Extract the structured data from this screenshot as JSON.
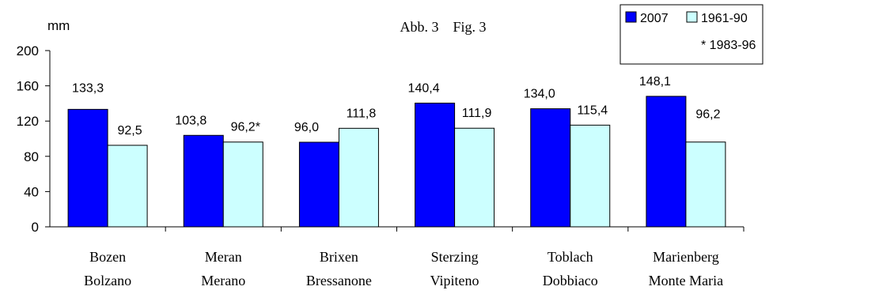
{
  "chart_data": {
    "type": "bar",
    "title": "Abb. 3    Fig. 3",
    "ylabel": "mm",
    "xlabel": "",
    "ylim": [
      0,
      200
    ],
    "yticks": [
      0,
      40,
      80,
      120,
      160,
      200
    ],
    "grid": false,
    "legend_position": "top-right",
    "legend_note": "* 1983-96",
    "categories": [
      {
        "label_de": "Bozen",
        "label_it": "Bolzano"
      },
      {
        "label_de": "Meran",
        "label_it": "Merano"
      },
      {
        "label_de": "Brixen",
        "label_it": "Bressanone"
      },
      {
        "label_de": "Sterzing",
        "label_it": "Vipiteno"
      },
      {
        "label_de": "Toblach",
        "label_it": "Dobbiaco"
      },
      {
        "label_de": "Marienberg",
        "label_it": "Monte Maria"
      }
    ],
    "series": [
      {
        "name": "2007",
        "color": "#0000ff",
        "values": [
          133.3,
          103.8,
          96.0,
          140.4,
          134.0,
          148.1
        ],
        "labels": [
          "133,3",
          "103,8",
          "96,0",
          "140,4",
          "134,0",
          "148,1"
        ]
      },
      {
        "name": "1961-90",
        "color": "#ccffff",
        "values": [
          92.5,
          96.2,
          111.8,
          111.9,
          115.4,
          96.2
        ],
        "labels": [
          "92,5",
          "96,2*",
          "111,8",
          "111,9",
          "115,4",
          "96,2"
        ]
      }
    ]
  }
}
